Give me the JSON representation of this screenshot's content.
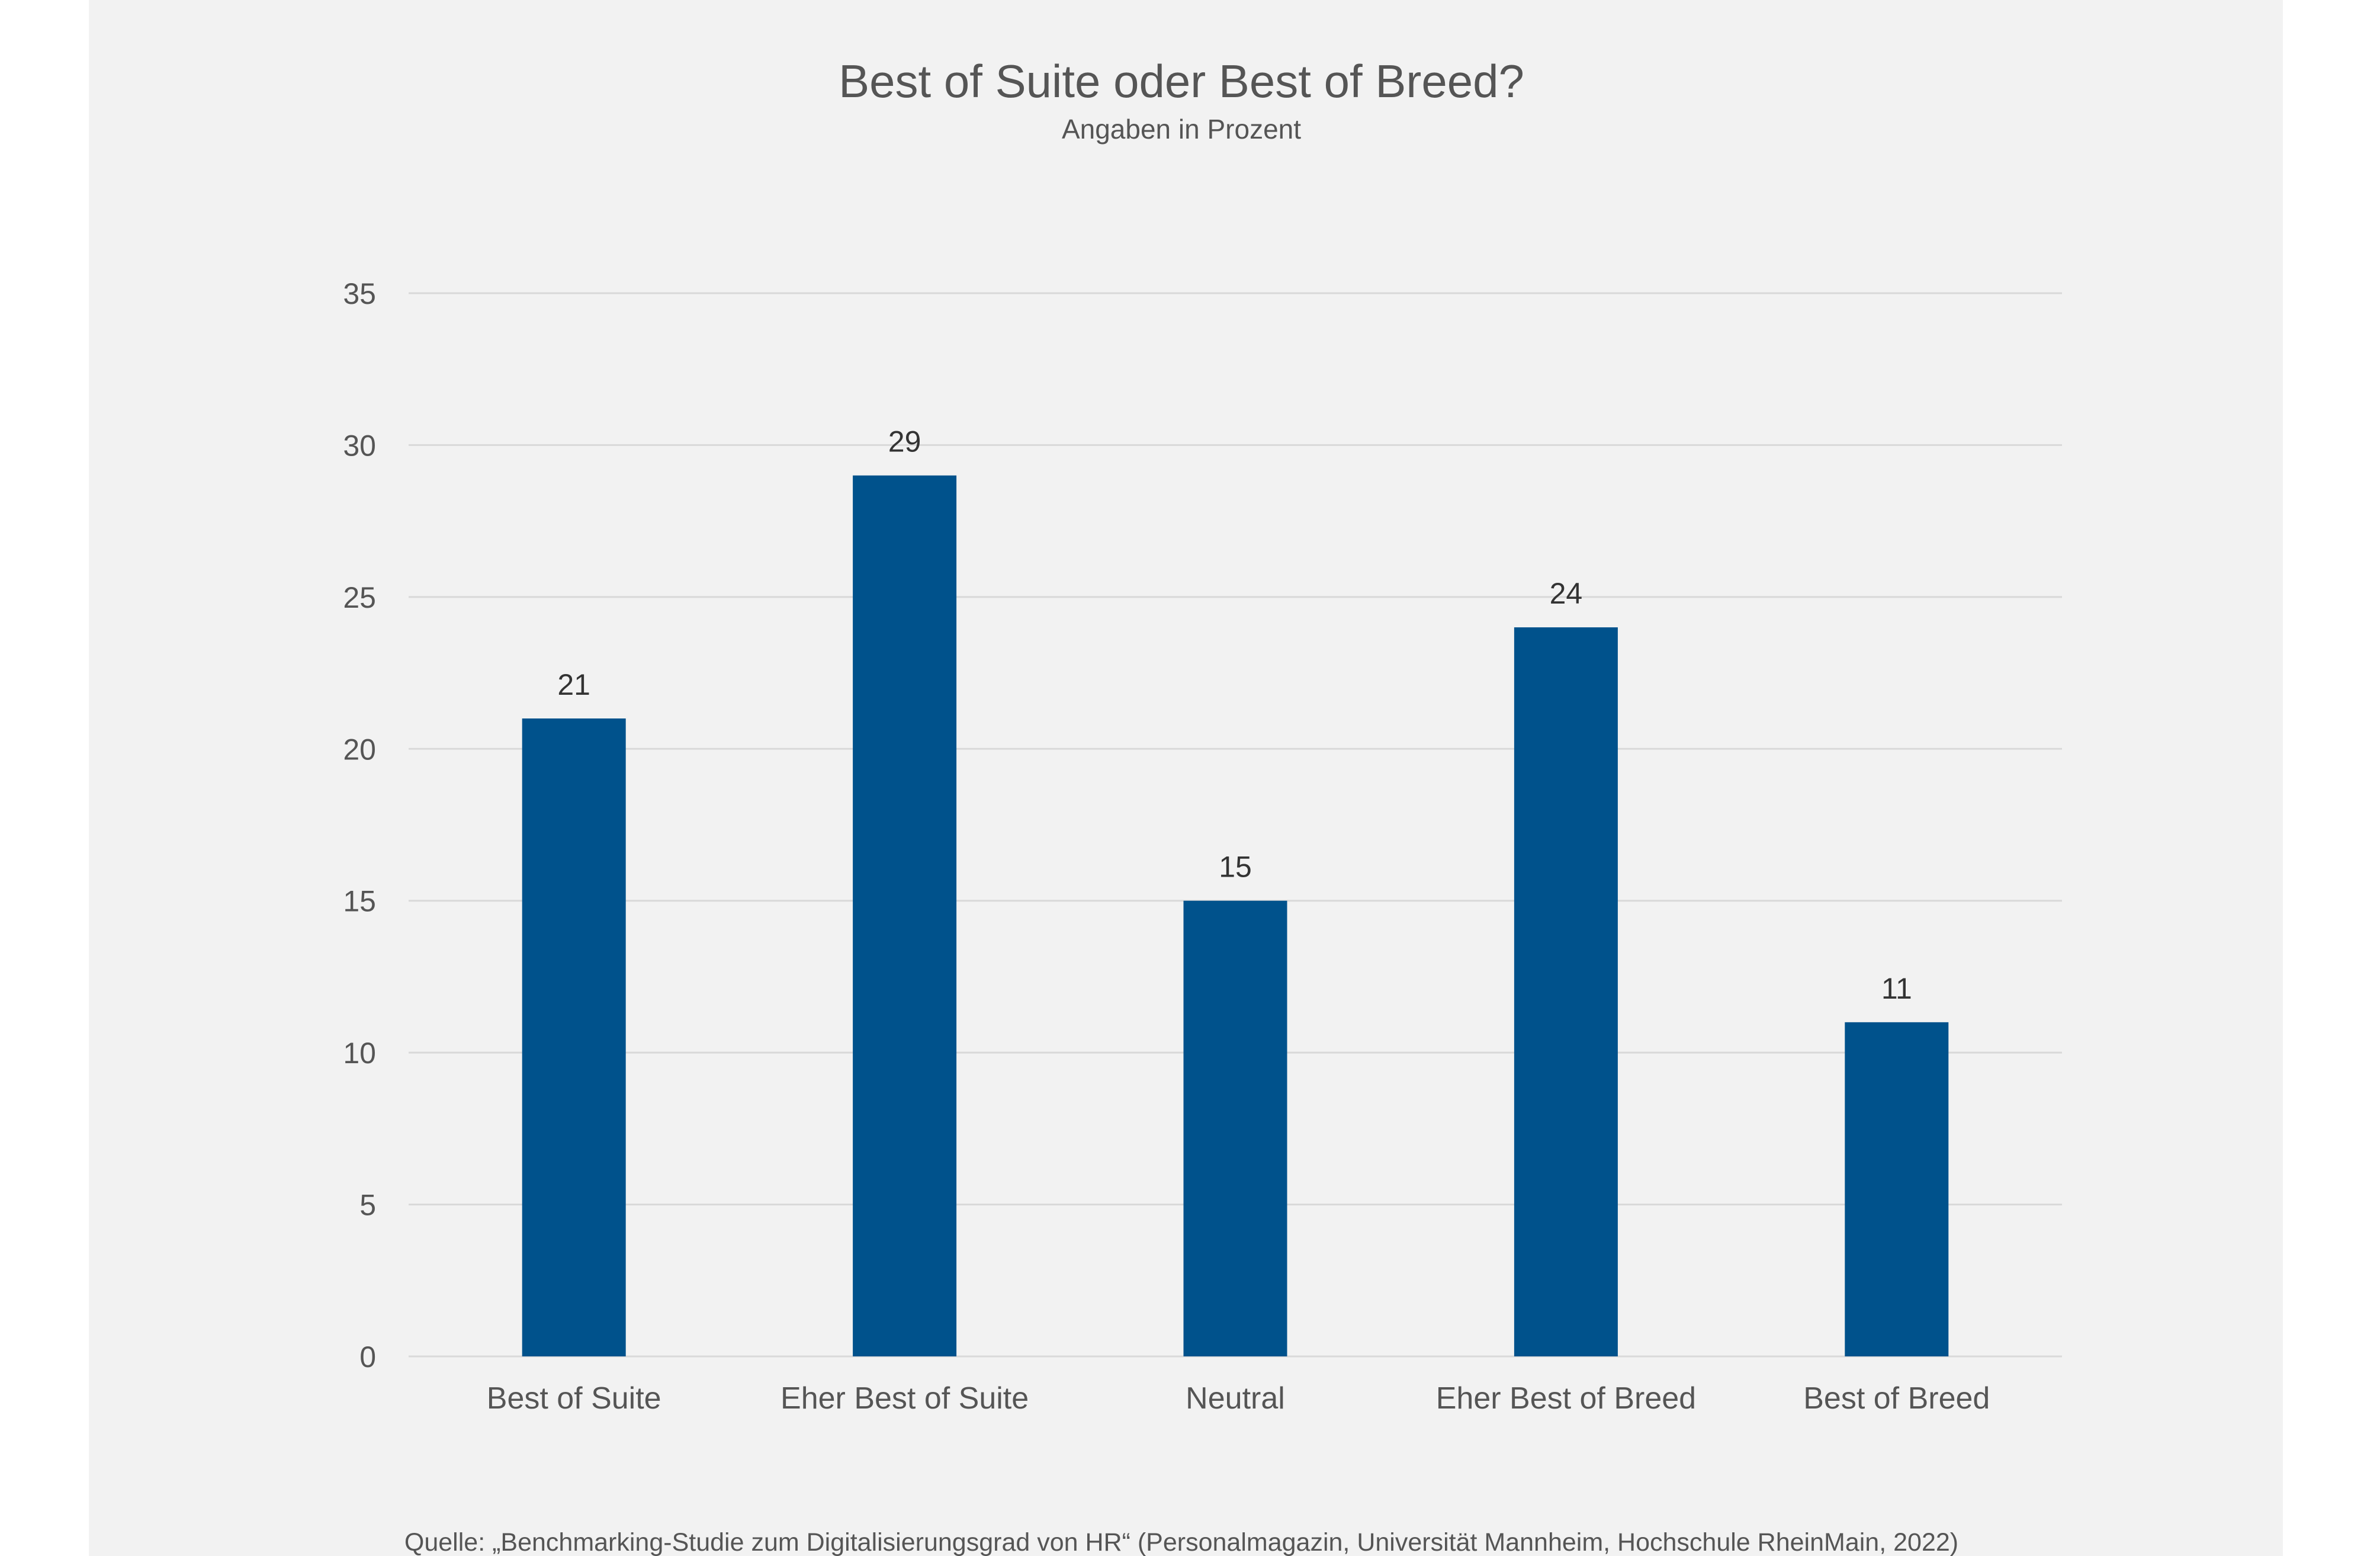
{
  "chart_data": {
    "type": "bar",
    "title": "Best of Suite oder Best of Breed?",
    "subtitle": "Angaben in Prozent",
    "categories": [
      "Best of Suite",
      "Eher Best of Suite",
      "Neutral",
      "Eher Best of Breed",
      "Best of Breed"
    ],
    "values": [
      21,
      29,
      15,
      24,
      11
    ],
    "ylim": [
      0,
      35
    ],
    "yticks": [
      0,
      5,
      10,
      15,
      20,
      25,
      30,
      35
    ],
    "grid": true,
    "legend": "none",
    "bar_color": "#00528c",
    "source": "Quelle: „Benchmarking-Studie zum Digitalisierungsgrad von HR“ (Personalmagazin, Universität Mannheim, Hochschule RheinMain, 2022)"
  },
  "colors": {
    "panel_background": "#f2f2f2",
    "gridline": "#d9d9d9",
    "text": "#555555"
  }
}
